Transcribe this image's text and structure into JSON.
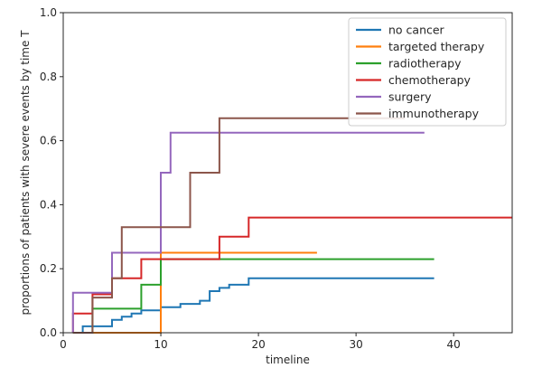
{
  "chart_data": {
    "type": "line",
    "xlabel": "timeline",
    "ylabel": "proportions of patients with severe events by time T",
    "xlim": [
      0,
      46
    ],
    "ylim": [
      0,
      1.0
    ],
    "xticks": [
      0,
      10,
      20,
      30,
      40
    ],
    "yticks": [
      0.0,
      0.2,
      0.4,
      0.6,
      0.8,
      1.0
    ],
    "ytick_labels": [
      "0.0",
      "0.2",
      "0.4",
      "0.6",
      "0.8",
      "1.0"
    ],
    "grid": false,
    "step": "post",
    "legend_position": "top-right",
    "series": [
      {
        "name": "no cancer",
        "color": "#1f77b4",
        "points": [
          [
            1,
            0
          ],
          [
            2,
            0.02
          ],
          [
            5,
            0.04
          ],
          [
            6,
            0.05
          ],
          [
            7,
            0.06
          ],
          [
            8,
            0.07
          ],
          [
            10,
            0.08
          ],
          [
            12,
            0.09
          ],
          [
            14,
            0.1
          ],
          [
            15,
            0.13
          ],
          [
            16,
            0.14
          ],
          [
            17,
            0.15
          ],
          [
            19,
            0.17
          ],
          [
            38,
            0.17
          ]
        ]
      },
      {
        "name": "targeted therapy",
        "color": "#ff7f0e",
        "points": [
          [
            1,
            0
          ],
          [
            10,
            0.25
          ],
          [
            26,
            0.25
          ]
        ]
      },
      {
        "name": "radiotherapy",
        "color": "#2ca02c",
        "points": [
          [
            1,
            0
          ],
          [
            3,
            0.075
          ],
          [
            8,
            0.15
          ],
          [
            10,
            0.23
          ],
          [
            38,
            0.23
          ]
        ]
      },
      {
        "name": "chemotherapy",
        "color": "#d62728",
        "points": [
          [
            1,
            0
          ],
          [
            1,
            0.06
          ],
          [
            3,
            0.12
          ],
          [
            5,
            0.17
          ],
          [
            8,
            0.23
          ],
          [
            16,
            0.3
          ],
          [
            19,
            0.36
          ],
          [
            46,
            0.36
          ]
        ]
      },
      {
        "name": "surgery",
        "color": "#9467bd",
        "points": [
          [
            1,
            0
          ],
          [
            1,
            0.125
          ],
          [
            5,
            0.25
          ],
          [
            10,
            0.5
          ],
          [
            11,
            0.625
          ],
          [
            37,
            0.625
          ]
        ]
      },
      {
        "name": "immunotherapy",
        "color": "#8c564b",
        "points": [
          [
            1,
            0
          ],
          [
            3,
            0.11
          ],
          [
            5,
            0.17
          ],
          [
            6,
            0.33
          ],
          [
            13,
            0.5
          ],
          [
            16,
            0.67
          ],
          [
            35,
            0.67
          ]
        ]
      }
    ]
  }
}
